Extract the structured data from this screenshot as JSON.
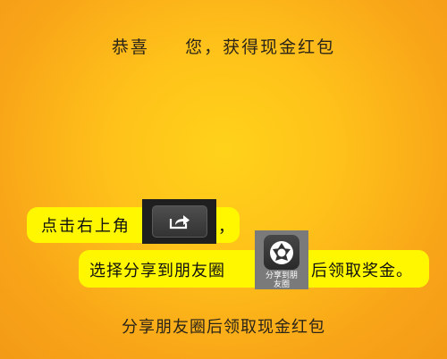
{
  "title": "恭喜     您，获得现金红包",
  "step1": {
    "text": "点击右上角",
    "comma": "，",
    "icon": "share-icon"
  },
  "step2": {
    "text_before": "选择分享到朋友圈",
    "text_after": "后领取奖金。",
    "icon": "moments-aperture-icon",
    "icon_label": "分享到朋友圈"
  },
  "footer": "分享朋友圈后领取现金红包",
  "colors": {
    "highlight": "#fff700",
    "background": "#ffc21a"
  }
}
